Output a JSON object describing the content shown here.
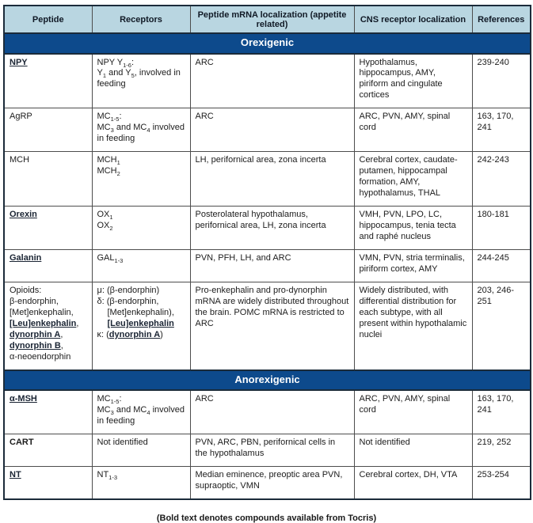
{
  "colors": {
    "header_bg": "#b9d6e1",
    "section_bg": "#0d4a8c",
    "section_text": "#ffffff",
    "border": "#4d4d4d",
    "outer_border": "#1b2b3a",
    "text": "#1c1c1c",
    "emphasis": "#1a2433"
  },
  "table": {
    "headers": [
      "Peptide",
      "Receptors",
      "Peptide mRNA localization (appetite related)",
      "CNS receptor localization",
      "References"
    ],
    "column_keys": [
      "peptide",
      "receptors",
      "mrna",
      "cns",
      "refs"
    ],
    "sections": [
      {
        "title": "Orexigenic",
        "rows": [
          {
            "peptide": [
              [
                {
                  "t": "NPY",
                  "b": 1,
                  "u": 1
                }
              ]
            ],
            "receptors": [
              [
                {
                  "t": "NPY Y"
                },
                {
                  "t": "1-6",
                  "sub": 1
                },
                {
                  "t": ":"
                }
              ],
              [
                {
                  "t": "Y"
                },
                {
                  "t": "1",
                  "sub": 1
                },
                {
                  "t": " and Y"
                },
                {
                  "t": "5",
                  "sub": 1
                },
                {
                  "t": ", involved in feeding"
                }
              ]
            ],
            "mrna": [
              "ARC"
            ],
            "cns": [
              "Hypothalamus, hippocampus, AMY, piriform and cingulate cortices"
            ],
            "refs": [
              "239-240"
            ]
          },
          {
            "peptide": [
              "AgRP"
            ],
            "receptors": [
              [
                {
                  "t": "MC"
                },
                {
                  "t": "1-5",
                  "sub": 1
                },
                {
                  "t": ":"
                }
              ],
              [
                {
                  "t": "MC"
                },
                {
                  "t": "3",
                  "sub": 1
                },
                {
                  "t": " and MC"
                },
                {
                  "t": "4",
                  "sub": 1
                },
                {
                  "t": " involved in feeding"
                }
              ]
            ],
            "mrna": [
              "ARC"
            ],
            "cns": [
              "ARC, PVN, AMY, spinal cord"
            ],
            "refs": [
              "163, 170, 241"
            ]
          },
          {
            "peptide": [
              "MCH"
            ],
            "receptors": [
              [
                {
                  "t": "MCH"
                },
                {
                  "t": "1",
                  "sub": 1
                }
              ],
              [
                {
                  "t": "MCH"
                },
                {
                  "t": "2",
                  "sub": 1
                }
              ]
            ],
            "mrna": [
              "LH, perifornical area, zona incerta"
            ],
            "cns": [
              "Cerebral cortex, caudate-putamen, hippocampal formation, AMY, hypothalamus, THAL"
            ],
            "refs": [
              "242-243"
            ]
          },
          {
            "peptide": [
              [
                {
                  "t": "Orexin",
                  "b": 1,
                  "u": 1
                }
              ]
            ],
            "receptors": [
              [
                {
                  "t": "OX"
                },
                {
                  "t": "1",
                  "sub": 1
                }
              ],
              [
                {
                  "t": "OX"
                },
                {
                  "t": "2",
                  "sub": 1
                }
              ]
            ],
            "mrna": [
              "Posterolateral hypothalamus, perifornical area, LH, zona incerta"
            ],
            "cns": [
              "VMH, PVN, LPO, LC, hippocampus, tenia tecta and raphé nucleus"
            ],
            "refs": [
              "180-181"
            ]
          },
          {
            "peptide": [
              [
                {
                  "t": "Galanin",
                  "b": 1,
                  "u": 1
                }
              ]
            ],
            "receptors": [
              [
                {
                  "t": "GAL"
                },
                {
                  "t": "1-3",
                  "sub": 1
                }
              ]
            ],
            "mrna": [
              "PVN, PFH, LH, and ARC"
            ],
            "cns": [
              "VMN, PVN, stria terminalis, piriform cortex, AMY"
            ],
            "refs": [
              "244-245"
            ]
          },
          {
            "peptide": [
              "Opioids:",
              "β-endorphin,",
              "[Met]enkephalin,",
              [
                {
                  "t": "[Leu]enkephalin",
                  "b": 1,
                  "u": 1
                },
                {
                  "t": ","
                }
              ],
              [
                {
                  "t": "dynorphin A",
                  "b": 1,
                  "u": 1
                },
                {
                  "t": ","
                }
              ],
              [
                {
                  "t": "dynorphin B",
                  "b": 1,
                  "u": 1
                },
                {
                  "t": ","
                }
              ],
              "α-neoendorphin"
            ],
            "receptors": [
              "μ: (β-endorphin)",
              "δ: (β-endorphin,",
              {
                "ind": 1,
                "seg": [
                  {
                    "t": "[Met]enkephalin),"
                  }
                ]
              },
              {
                "ind": 1,
                "seg": [
                  {
                    "t": "[Leu]enkephalin",
                    "b": 1,
                    "u": 1
                  }
                ]
              },
              [
                {
                  "t": "κ: ("
                },
                {
                  "t": "dynorphin A",
                  "b": 1,
                  "u": 1
                },
                {
                  "t": ")"
                }
              ]
            ],
            "mrna": [
              "Pro-enkephalin and pro-dynorphin mRNA are widely distributed throughout the brain. POMC mRNA is restricted to ARC"
            ],
            "cns": [
              "Widely distributed, with differential distribution for each subtype, with all present within hypothalamic nuclei"
            ],
            "refs": [
              "203, 246-251"
            ]
          }
        ]
      },
      {
        "title": "Anorexigenic",
        "rows": [
          {
            "peptide": [
              [
                {
                  "t": "α-MSH",
                  "b": 1,
                  "u": 1
                }
              ]
            ],
            "receptors": [
              [
                {
                  "t": "MC"
                },
                {
                  "t": "1-5",
                  "sub": 1
                },
                {
                  "t": ":"
                }
              ],
              [
                {
                  "t": "MC"
                },
                {
                  "t": "3",
                  "sub": 1
                },
                {
                  "t": " and MC"
                },
                {
                  "t": "4",
                  "sub": 1
                },
                {
                  "t": " involved in feeding"
                }
              ]
            ],
            "mrna": [
              "ARC"
            ],
            "cns": [
              "ARC, PVN, AMY, spinal cord"
            ],
            "refs": [
              "163, 170, 241"
            ]
          },
          {
            "peptide": [
              [
                {
                  "t": "CART",
                  "b": 1
                }
              ]
            ],
            "receptors": [
              "Not identified"
            ],
            "mrna": [
              "PVN, ARC, PBN, perifornical cells in the hypothalamus"
            ],
            "cns": [
              "Not identified"
            ],
            "refs": [
              "219, 252"
            ]
          },
          {
            "peptide": [
              [
                {
                  "t": "NT",
                  "b": 1,
                  "u": 1
                }
              ]
            ],
            "receptors": [
              [
                {
                  "t": "NT"
                },
                {
                  "t": "1-3",
                  "sub": 1
                }
              ]
            ],
            "mrna": [
              "Median eminence, preoptic area PVN, supraoptic, VMN"
            ],
            "cns": [
              "Cerebral cortex, DH, VTA"
            ],
            "refs": [
              "253-254"
            ]
          }
        ]
      }
    ],
    "footer": "(Bold text denotes compounds available from Tocris)"
  }
}
